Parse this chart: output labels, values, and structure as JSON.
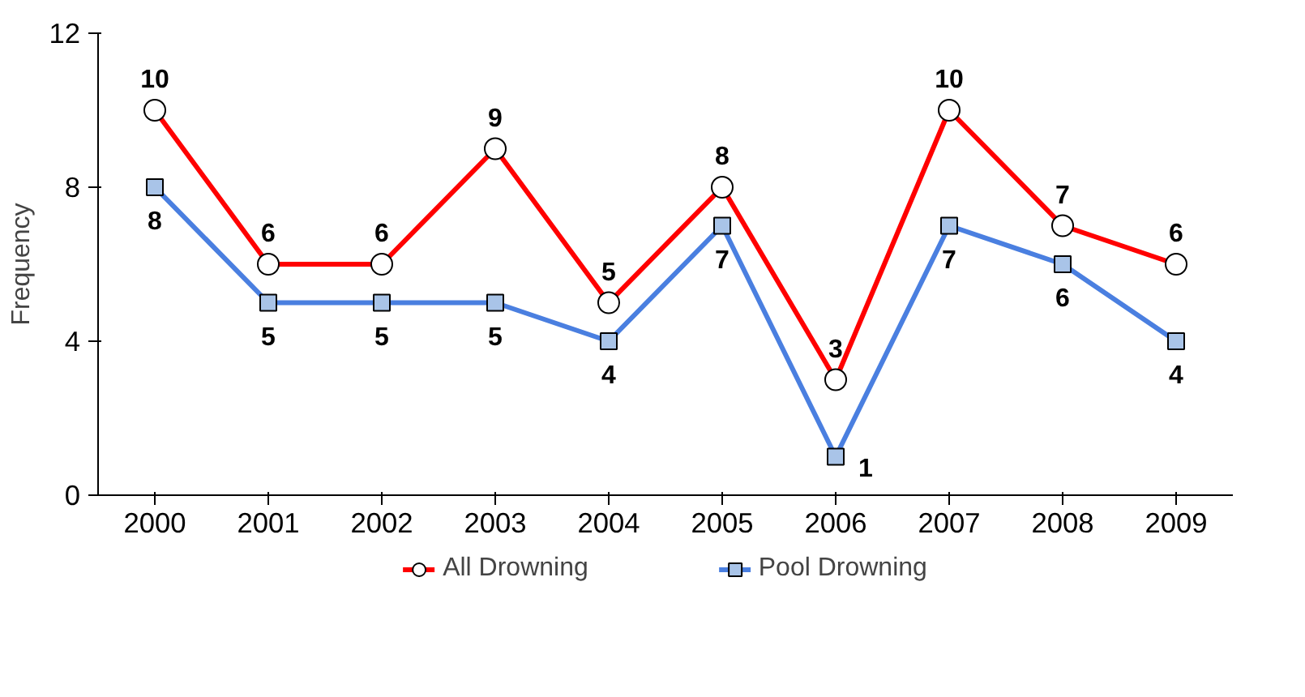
{
  "chart_data": {
    "type": "line",
    "ylabel": "Frequency",
    "categories": [
      "2000",
      "2001",
      "2002",
      "2003",
      "2004",
      "2005",
      "2006",
      "2007",
      "2008",
      "2009"
    ],
    "series": [
      {
        "name": "All Drowning",
        "color": "#ff0000",
        "marker": "circle",
        "values": [
          10,
          6,
          6,
          9,
          5,
          8,
          3,
          10,
          7,
          6
        ]
      },
      {
        "name": "Pool Drowning",
        "color": "#4a7fe0",
        "marker": "square",
        "values": [
          8,
          5,
          5,
          5,
          4,
          7,
          1,
          7,
          6,
          4
        ]
      }
    ],
    "ylim": [
      0,
      12
    ],
    "yticks": [
      0,
      4,
      8,
      12
    ],
    "grid": false,
    "legend": "bottom",
    "data_labels": true
  }
}
